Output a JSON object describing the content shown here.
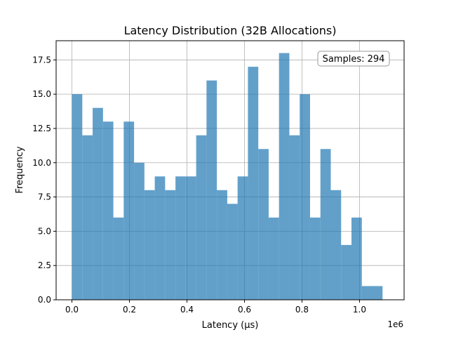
{
  "chart_data": {
    "type": "histogram",
    "title": "Latency Distribution (32B Allocations)",
    "xlabel": "Latency (µs)",
    "ylabel": "Frequency",
    "x_offset_label": "1e6",
    "x_scale_multiplier": 1000000,
    "xlim": [
      -0.055,
      1.155
    ],
    "ylim": [
      0,
      18.9
    ],
    "xticks": [
      0.0,
      0.2,
      0.4,
      0.6,
      0.8,
      1.0
    ],
    "xtick_labels": [
      "0.0",
      "0.2",
      "0.4",
      "0.6",
      "0.8",
      "1.0"
    ],
    "yticks": [
      0.0,
      2.5,
      5.0,
      7.5,
      10.0,
      12.5,
      15.0,
      17.5
    ],
    "ytick_labels": [
      "0.0",
      "2.5",
      "5.0",
      "7.5",
      "10.0",
      "12.5",
      "15.0",
      "17.5"
    ],
    "grid": true,
    "bin_start": 0.0,
    "bin_width": 0.036,
    "counts": [
      15,
      12,
      14,
      13,
      6,
      13,
      10,
      8,
      9,
      8,
      9,
      9,
      12,
      16,
      8,
      7,
      9,
      17,
      11,
      6,
      18,
      12,
      15,
      6,
      11,
      8,
      4,
      6,
      1,
      1
    ],
    "annotation": "Samples: 294",
    "bar_color": "#1f77b4",
    "bar_alpha": 0.7
  }
}
